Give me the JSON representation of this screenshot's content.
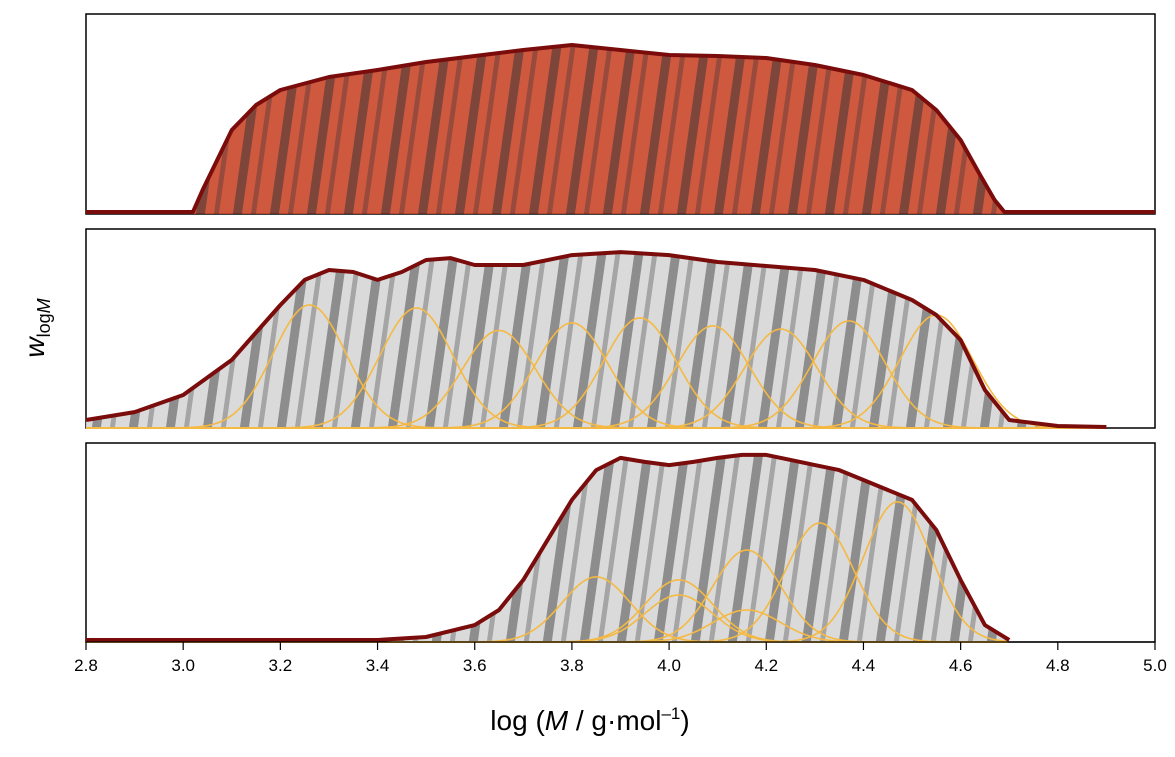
{
  "chart_data": [
    {
      "type": "line",
      "xlim": [
        2.8,
        5.0
      ],
      "ylim": [
        0,
        1
      ],
      "area_color": "#c9472a",
      "stripe_color": "#5a2a24",
      "line_color": "#7a0c0c",
      "x": [
        2.8,
        3.02,
        3.04,
        3.07,
        3.1,
        3.15,
        3.2,
        3.3,
        3.4,
        3.5,
        3.6,
        3.7,
        3.8,
        3.9,
        4.0,
        4.1,
        4.2,
        4.3,
        4.4,
        4.5,
        4.55,
        4.6,
        4.64,
        4.67,
        4.69,
        5.0
      ],
      "values": [
        0.01,
        0.01,
        0.12,
        0.27,
        0.42,
        0.545,
        0.62,
        0.685,
        0.72,
        0.76,
        0.79,
        0.82,
        0.845,
        0.82,
        0.795,
        0.79,
        0.78,
        0.745,
        0.695,
        0.62,
        0.52,
        0.37,
        0.195,
        0.07,
        0.01,
        0.01
      ]
    },
    {
      "type": "line",
      "xlim": [
        2.8,
        5.0
      ],
      "ylim": [
        0,
        1
      ],
      "area_color": "#d6d6d6",
      "stripe_color": "#6a6a6a",
      "line_color": "#7a0c0c",
      "component_color": "#f5b942",
      "ylabel": [
        "w",
        "log",
        "M"
      ],
      "x": [
        2.8,
        2.9,
        3.0,
        3.1,
        3.2,
        3.25,
        3.3,
        3.35,
        3.4,
        3.45,
        3.5,
        3.55,
        3.6,
        3.7,
        3.8,
        3.9,
        4.0,
        4.1,
        4.2,
        4.3,
        4.4,
        4.5,
        4.55,
        4.6,
        4.65,
        4.7,
        4.8,
        4.9
      ],
      "values": [
        0.04,
        0.08,
        0.166,
        0.342,
        0.618,
        0.744,
        0.794,
        0.784,
        0.744,
        0.784,
        0.844,
        0.854,
        0.819,
        0.819,
        0.869,
        0.884,
        0.869,
        0.834,
        0.814,
        0.794,
        0.744,
        0.643,
        0.568,
        0.442,
        0.191,
        0.04,
        0.01,
        0.005
      ],
      "components": [
        {
          "mu": 3.26,
          "height": 0.618,
          "sigma": 0.075
        },
        {
          "mu": 3.48,
          "height": 0.603,
          "sigma": 0.075
        },
        {
          "mu": 3.65,
          "height": 0.49,
          "sigma": 0.075
        },
        {
          "mu": 3.8,
          "height": 0.528,
          "sigma": 0.075
        },
        {
          "mu": 3.94,
          "height": 0.553,
          "sigma": 0.075
        },
        {
          "mu": 4.09,
          "height": 0.513,
          "sigma": 0.075
        },
        {
          "mu": 4.23,
          "height": 0.497,
          "sigma": 0.075
        },
        {
          "mu": 4.37,
          "height": 0.538,
          "sigma": 0.075
        },
        {
          "mu": 4.55,
          "height": 0.568,
          "sigma": 0.075
        }
      ]
    },
    {
      "type": "line",
      "xlim": [
        2.8,
        5.0
      ],
      "ylim": [
        0,
        1
      ],
      "area_color": "#d6d6d6",
      "stripe_color": "#6a6a6a",
      "line_color": "#7a0c0c",
      "component_color": "#f5b942",
      "x": [
        2.8,
        3.4,
        3.5,
        3.6,
        3.65,
        3.7,
        3.75,
        3.8,
        3.85,
        3.9,
        3.95,
        4.0,
        4.05,
        4.1,
        4.15,
        4.2,
        4.25,
        4.3,
        4.35,
        4.4,
        4.45,
        4.5,
        4.55,
        4.6,
        4.65,
        4.7
      ],
      "values": [
        0.01,
        0.01,
        0.025,
        0.085,
        0.161,
        0.312,
        0.513,
        0.714,
        0.864,
        0.925,
        0.905,
        0.889,
        0.905,
        0.925,
        0.94,
        0.94,
        0.915,
        0.889,
        0.864,
        0.814,
        0.764,
        0.714,
        0.563,
        0.312,
        0.085,
        0.01
      ],
      "components": [
        {
          "mu": 3.85,
          "height": 0.327,
          "sigma": 0.07
        },
        {
          "mu": 4.02,
          "height": 0.312,
          "sigma": 0.07
        },
        {
          "mu": 4.02,
          "height": 0.236,
          "sigma": 0.07
        },
        {
          "mu": 4.16,
          "height": 0.462,
          "sigma": 0.07
        },
        {
          "mu": 4.16,
          "height": 0.161,
          "sigma": 0.07
        },
        {
          "mu": 4.31,
          "height": 0.598,
          "sigma": 0.07
        },
        {
          "mu": 4.47,
          "height": 0.704,
          "sigma": 0.07
        }
      ],
      "xticks": [
        2.8,
        {
          "value": 3,
          "label": "3.0"
        },
        3.2,
        3.4,
        3.6,
        3.8,
        {
          "value": 4,
          "label": "4.0"
        },
        4.2,
        4.4,
        4.6,
        4.8,
        {
          "value": 5,
          "label": "5.0"
        }
      ],
      "xlabel": [
        "log (",
        "M",
        " / g·mol",
        "–1",
        ")"
      ]
    }
  ]
}
